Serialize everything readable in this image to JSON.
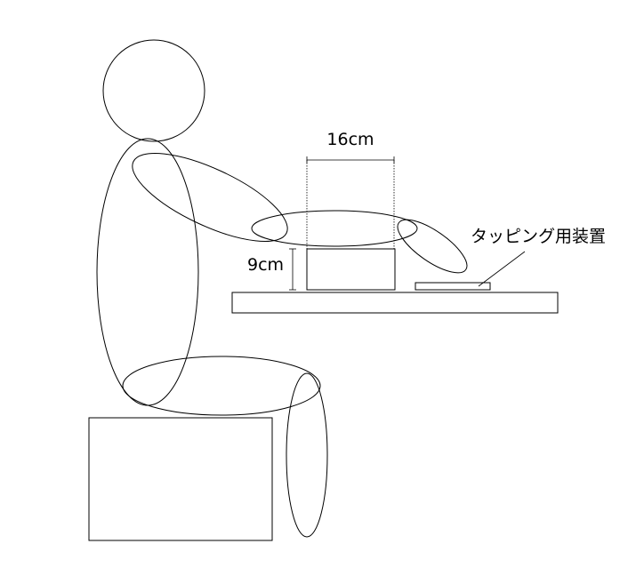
{
  "labels": {
    "width_measure": "16cm",
    "height_measure": "9cm",
    "device": "タッピング用装置"
  },
  "colors": {
    "stroke": "#000000",
    "background": "#ffffff"
  }
}
